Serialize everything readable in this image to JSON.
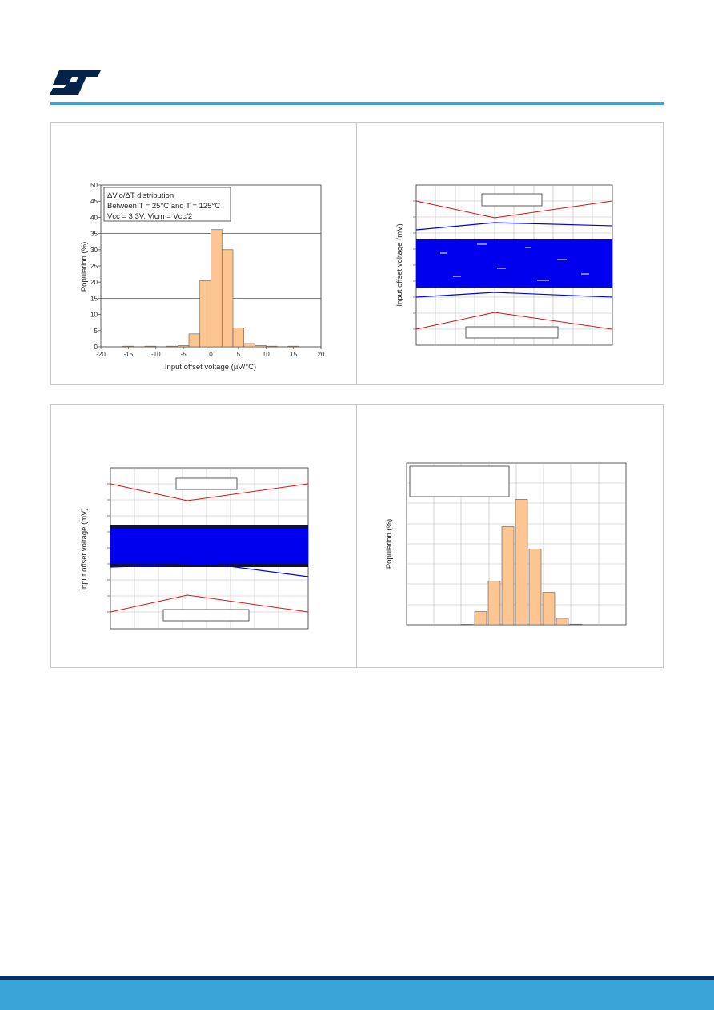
{
  "brand": {
    "accent": "#3aa4d8",
    "footer_dark": "#0b2e5a",
    "logo_color": "#03234b",
    "logo_name": "st-logo"
  },
  "colors": {
    "bar_fill": "#fcc591",
    "curve_blue": "#0000ee",
    "limit_red": "#dd1111",
    "hline": "#555555"
  },
  "chart_data": [
    {
      "type": "bar",
      "legend": [
        "ΔVio/ΔT distribution",
        "Between T = 25°C and T = 125°C",
        "Vcc = 3.3V, Vicm = Vcc/2"
      ],
      "xlabel": "Input offset voltage (µV/°C)",
      "ylabel": "Population (%)",
      "x_ticks": [
        "-20",
        "-15",
        "-10",
        "-5",
        "0",
        "5",
        "10",
        "15",
        "20"
      ],
      "y_ticks": [
        "0",
        "5",
        "10",
        "15",
        "20",
        "25",
        "30",
        "35",
        "40",
        "45",
        "50"
      ],
      "xlim": [
        -20,
        20
      ],
      "ylim": [
        0,
        50
      ],
      "hlines": [
        15,
        35
      ],
      "bin_width": 2,
      "bins": [
        -15,
        -11,
        -7,
        -5,
        -3,
        -1,
        1,
        3,
        5,
        7,
        9,
        11,
        15
      ],
      "values": [
        0.2,
        0.2,
        0.2,
        0.4,
        4,
        20.5,
        36.2,
        30,
        5.8,
        1,
        0.4,
        0.2,
        0.2
      ]
    },
    {
      "type": "line",
      "ylabel": "Input offset voltage (mV)",
      "legend_boxes": [
        "",
        ""
      ]
    },
    {
      "type": "line",
      "ylabel": "Input offset voltage (mV)",
      "legend_boxes": [
        "",
        ""
      ]
    },
    {
      "type": "bar",
      "ylabel": "Population (%)",
      "legend_boxes": [
        ""
      ],
      "values": [
        0.2,
        6.5,
        21.5,
        48.5,
        62,
        37.5,
        16,
        3.2,
        0.3
      ],
      "ylim": [
        0,
        80
      ]
    }
  ]
}
